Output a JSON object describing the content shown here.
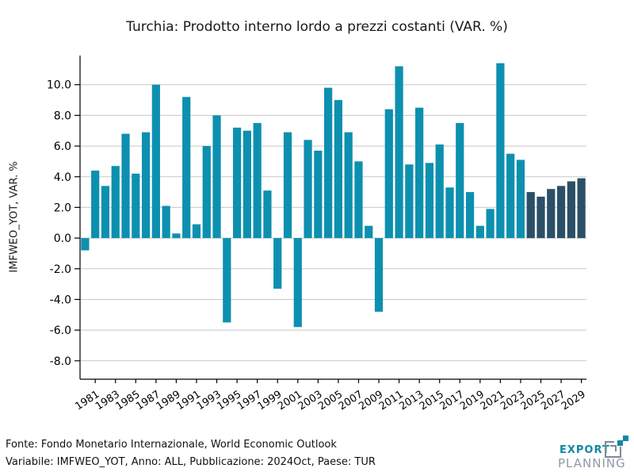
{
  "title": "Turchia: Prodotto interno lordo a prezzi costanti (VAR. %)",
  "footer": {
    "line1": "Fonte: Fondo Monetario Internazionale, World Economic Outlook",
    "line2": "Variabile: IMFWEO_YOT, Anno: ALL, Pubblicazione: 2024Oct, Paese: TUR"
  },
  "logo": {
    "export_text": "EXPORT",
    "planning_text": "PLANNING",
    "export_color": "#1286a5",
    "planning_color": "#8d9aa6",
    "icon_gray": "#7d8a94",
    "icon_teal": "#1286a5"
  },
  "chart_data": {
    "type": "bar",
    "title": "Turchia: Prodotto interno lordo a prezzi costanti (VAR. %)",
    "xlabel": "",
    "ylabel": "IMFWEO_YOT, VAR. %",
    "categories": [
      1980,
      1981,
      1982,
      1983,
      1984,
      1985,
      1986,
      1987,
      1988,
      1989,
      1990,
      1991,
      1992,
      1993,
      1994,
      1995,
      1996,
      1997,
      1998,
      1999,
      2000,
      2001,
      2002,
      2003,
      2004,
      2005,
      2006,
      2007,
      2008,
      2009,
      2010,
      2011,
      2012,
      2013,
      2014,
      2015,
      2016,
      2017,
      2018,
      2019,
      2020,
      2021,
      2022,
      2023,
      2024,
      2025,
      2026,
      2027,
      2028,
      2029
    ],
    "values": [
      -0.8,
      4.4,
      3.4,
      4.7,
      6.8,
      4.2,
      6.9,
      10.0,
      2.1,
      0.3,
      9.2,
      0.9,
      6.0,
      8.0,
      -5.5,
      7.2,
      7.0,
      7.5,
      3.1,
      -3.3,
      6.9,
      -5.8,
      6.4,
      5.7,
      9.8,
      9.0,
      6.9,
      5.0,
      0.8,
      -4.8,
      8.4,
      11.2,
      4.8,
      8.5,
      4.9,
      6.1,
      3.3,
      7.5,
      3.0,
      0.8,
      1.9,
      11.4,
      5.5,
      5.1,
      3.0,
      2.7,
      3.2,
      3.4,
      3.7,
      3.9
    ],
    "forecast_from_year": 2024,
    "bar_color_historical": "#0d90af",
    "bar_color_forecast": "#2b4f66",
    "grid": true,
    "gridline_color": "#c8c8c8",
    "axis_color": "#000000",
    "ylim": [
      -9.2,
      11.9
    ],
    "y_ticks": [
      -8,
      -6,
      -4,
      -2,
      0,
      2,
      4,
      6,
      8,
      10
    ],
    "x_tick_years": [
      1981,
      1983,
      1985,
      1987,
      1989,
      1991,
      1993,
      1995,
      1997,
      1999,
      2001,
      2003,
      2005,
      2007,
      2009,
      2011,
      2013,
      2015,
      2017,
      2019,
      2021,
      2023,
      2025,
      2027,
      2029
    ],
    "legend": "none"
  }
}
